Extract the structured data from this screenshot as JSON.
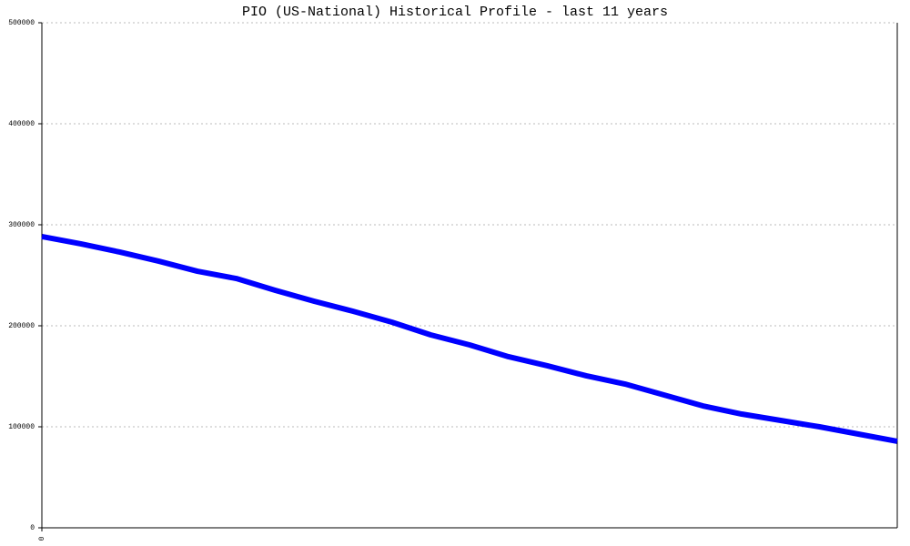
{
  "chart_data": {
    "type": "line",
    "title": "PIO (US-National) Historical Profile - last 11 years",
    "x": [
      0,
      1,
      2,
      3,
      4,
      5,
      6,
      7,
      8,
      9,
      10,
      11,
      12,
      13,
      14,
      15,
      16,
      17,
      18,
      19,
      20,
      21,
      22
    ],
    "series": [
      {
        "color": "#0000ff",
        "values": [
          288300,
          281100,
          273000,
          264000,
          254000,
          246800,
          235100,
          224300,
          214400,
          203600,
          191000,
          181100,
          169400,
          160400,
          150500,
          142300,
          131500,
          120700,
          112600,
          106300,
          100000,
          92800,
          85600
        ]
      }
    ],
    "xlim": [
      0,
      22
    ],
    "xticks": [
      0
    ],
    "ylim": [
      0,
      500000
    ],
    "yticks": [
      0,
      100000,
      200000,
      300000,
      400000,
      500000
    ],
    "grid": true
  }
}
